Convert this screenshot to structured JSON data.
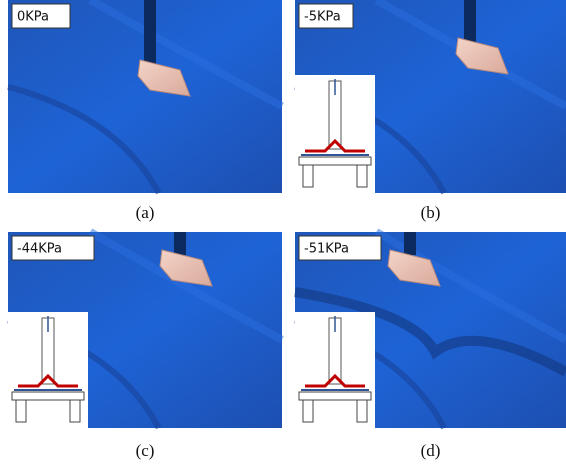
{
  "panels": [
    {
      "label": "0KPa",
      "caption": "(a)"
    },
    {
      "label": "-5KPa",
      "caption": "(b)"
    },
    {
      "label": "-44KPa",
      "caption": "(c)"
    },
    {
      "label": "-51KPa",
      "caption": "(d)"
    }
  ]
}
